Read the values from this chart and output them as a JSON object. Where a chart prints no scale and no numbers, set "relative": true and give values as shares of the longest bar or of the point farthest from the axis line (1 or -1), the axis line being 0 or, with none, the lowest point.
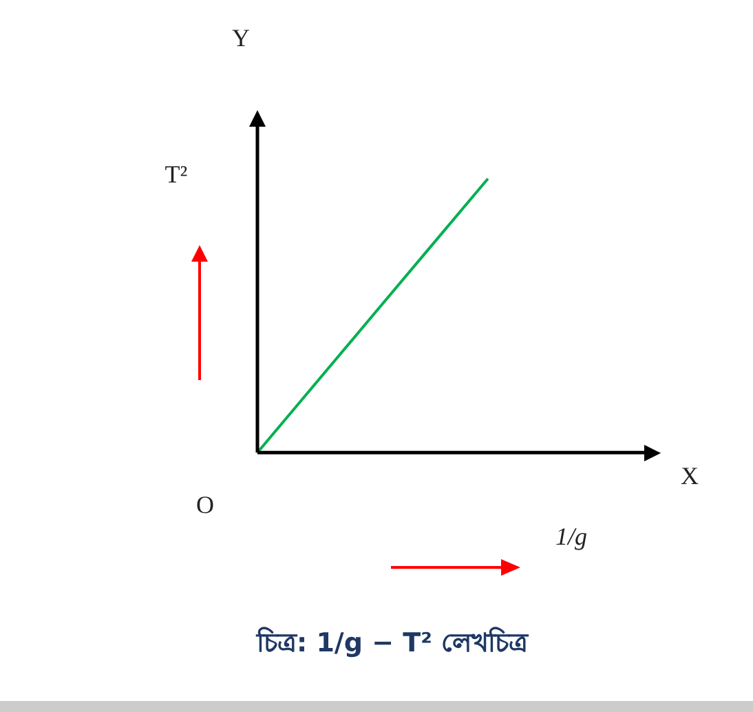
{
  "chart_data": {
    "type": "line",
    "relative": true,
    "title": "চিত্র: 1/g − T² লেখচিত্র",
    "xlabel": "1/g",
    "ylabel": "T²",
    "annotations": [
      "Y",
      "X",
      "O"
    ],
    "categories": [
      null,
      null,
      null,
      null,
      null,
      null,
      null,
      null
    ],
    "series": [
      {
        "color": "#00b050",
        "values": [
          0,
          0.25,
          0.5,
          0.75,
          1,
          null,
          null,
          null
        ]
      }
    ],
    "legend": false,
    "marker": "none",
    "line_style": "solid"
  }
}
